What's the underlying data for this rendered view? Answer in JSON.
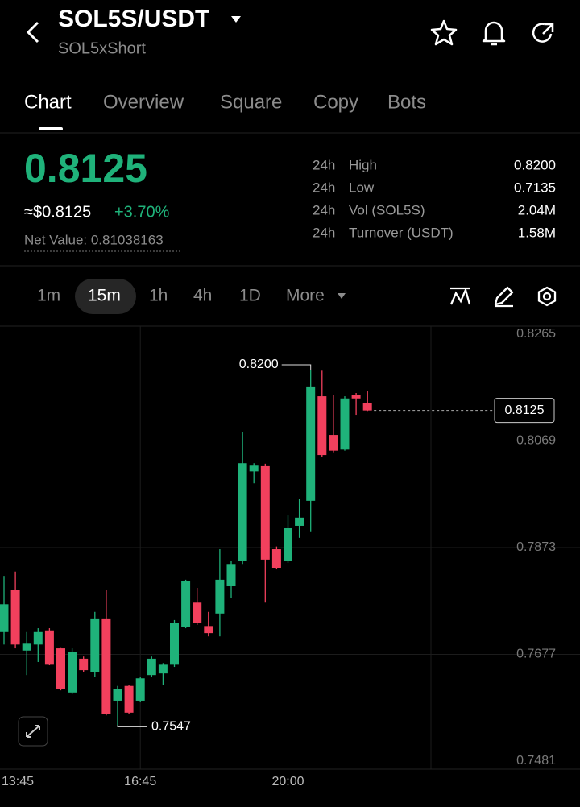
{
  "header": {
    "title": "SOL5S/USDT",
    "subtitle": "SOL5xShort"
  },
  "tabs": [
    "Chart",
    "Overview",
    "Square",
    "Copy",
    "Bots"
  ],
  "ticker": {
    "price": "0.8125",
    "usd_price": "≈$0.8125",
    "change": "+3.70%",
    "net_value": "Net Value: 0.81038163"
  },
  "stats": [
    {
      "period": "24h",
      "label": "High",
      "value": "0.8200"
    },
    {
      "period": "24h",
      "label": "Low",
      "value": "0.7135"
    },
    {
      "period": "24h",
      "label": "Vol (SOL5S)",
      "value": "2.04M"
    },
    {
      "period": "24h",
      "label": "Turnover (USDT)",
      "value": "1.58M"
    }
  ],
  "intervals": [
    "1m",
    "15m",
    "1h",
    "4h",
    "1D",
    "More"
  ],
  "chart_data": {
    "type": "candlestick",
    "x": [
      "13:45",
      null,
      null,
      null,
      null,
      null,
      null,
      null,
      null,
      null,
      null,
      null,
      "16:45",
      null,
      null,
      null,
      null,
      null,
      null,
      null,
      null,
      null,
      null,
      null,
      null,
      "20:00",
      null,
      null,
      null,
      null,
      null,
      null,
      null
    ],
    "open": [
      0.7718,
      0.7796,
      0.7684,
      0.7695,
      0.7721,
      0.7688,
      0.7607,
      0.7669,
      0.7644,
      0.7743,
      0.7592,
      0.7619,
      0.7592,
      0.7639,
      0.7642,
      0.7658,
      0.7728,
      0.7772,
      0.7729,
      0.7752,
      0.7802,
      0.7848,
      0.8013,
      0.8024,
      0.787,
      0.7848,
      0.7913,
      0.7959,
      0.8151,
      0.808,
      0.8053,
      0.8154,
      0.8138
    ],
    "high": [
      0.7821,
      0.7829,
      0.7718,
      0.7725,
      0.7725,
      0.769,
      0.7688,
      0.7673,
      0.7755,
      0.7795,
      0.7619,
      0.7621,
      0.7636,
      0.7673,
      0.7661,
      0.774,
      0.7814,
      0.7799,
      0.7755,
      0.787,
      0.7848,
      0.8085,
      0.8028,
      0.8027,
      0.7875,
      0.7932,
      0.7962,
      0.82,
      0.8198,
      0.8154,
      0.8151,
      0.8157,
      0.816
    ],
    "low": [
      0.7695,
      0.7688,
      0.7639,
      0.7663,
      0.7657,
      0.7611,
      0.7604,
      0.7645,
      0.7636,
      0.7565,
      0.7547,
      0.7567,
      0.7589,
      0.7636,
      0.7621,
      0.7654,
      0.7725,
      0.7731,
      0.771,
      0.771,
      0.7781,
      0.7843,
      0.7991,
      0.7772,
      0.7833,
      0.7845,
      0.7891,
      0.7903,
      0.804,
      0.8048,
      0.8051,
      0.8117,
      0.8124
    ],
    "close": [
      0.7769,
      0.7695,
      0.7698,
      0.7718,
      0.7658,
      0.7614,
      0.7681,
      0.7648,
      0.7743,
      0.7568,
      0.7614,
      0.757,
      0.7633,
      0.7669,
      0.7658,
      0.7735,
      0.7811,
      0.7735,
      0.7716,
      0.7814,
      0.7843,
      0.8028,
      0.8025,
      0.7851,
      0.7836,
      0.791,
      0.7928,
      0.8169,
      0.8043,
      0.8051,
      0.8147,
      0.8147,
      0.8125
    ],
    "up_color": "#1fb27a",
    "down_color": "#f2405d",
    "ylim": [
      0.7481,
      0.8265
    ],
    "yticks": [
      0.8265,
      0.8069,
      0.7873,
      0.7677,
      0.7481
    ],
    "grid": true,
    "high_label": {
      "value": 0.82,
      "label": "0.8200"
    },
    "low_label": {
      "value": 0.7547,
      "label": "0.7547"
    },
    "last_price": 0.8125
  }
}
